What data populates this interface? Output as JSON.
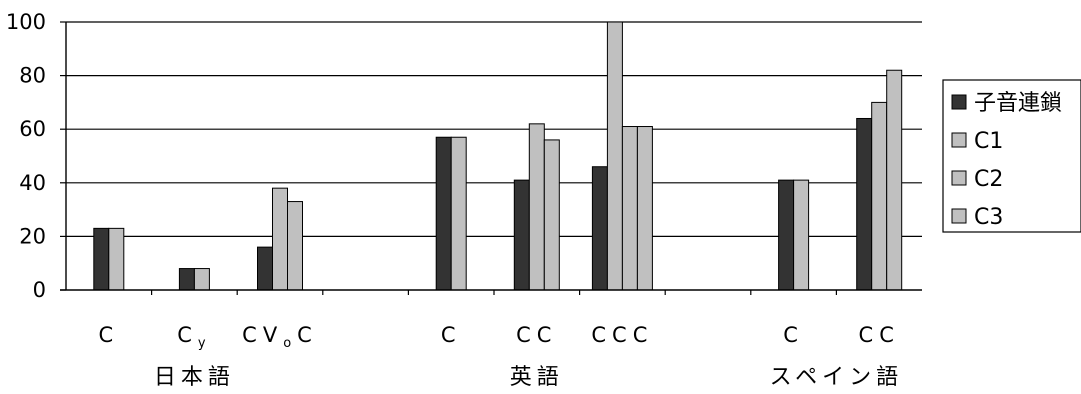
{
  "chart_data": {
    "type": "bar",
    "title": "",
    "xlabel": "",
    "ylabel": "",
    "ylim": [
      0,
      100
    ],
    "yticks": [
      0,
      20,
      40,
      60,
      80,
      100
    ],
    "grid": true,
    "legend_position": "right",
    "categories": [
      {
        "main": "C",
        "sub": ""
      },
      {
        "main": "C",
        "sub": "y"
      },
      {
        "main": "CV",
        "sub": "o",
        "tail": "C"
      },
      {
        "main": "",
        "sub": ""
      },
      {
        "main": "C",
        "sub": ""
      },
      {
        "main": "CC",
        "sub": ""
      },
      {
        "main": "CCC",
        "sub": ""
      },
      {
        "main": "",
        "sub": ""
      },
      {
        "main": "C",
        "sub": ""
      },
      {
        "main": "CC",
        "sub": ""
      }
    ],
    "groups": [
      {
        "label": "日本語",
        "from": 0,
        "to": 2
      },
      {
        "label": "英語",
        "from": 4,
        "to": 6
      },
      {
        "label": "スペイン語",
        "from": 8,
        "to": 9
      }
    ],
    "series": [
      {
        "name": "子音連鎖",
        "color": "#333333",
        "values": [
          23,
          8,
          16,
          null,
          57,
          41,
          46,
          null,
          41,
          64
        ]
      },
      {
        "name": "C1",
        "color": "#c0c0c0",
        "values": [
          23,
          8,
          38,
          null,
          57,
          62,
          100,
          null,
          41,
          70
        ]
      },
      {
        "name": "C2",
        "color": "#c0c0c0",
        "values": [
          null,
          null,
          33,
          null,
          null,
          56,
          61,
          null,
          null,
          82
        ]
      },
      {
        "name": "C3",
        "color": "#c0c0c0",
        "values": [
          null,
          null,
          null,
          null,
          null,
          null,
          61,
          null,
          null,
          null
        ]
      }
    ]
  }
}
